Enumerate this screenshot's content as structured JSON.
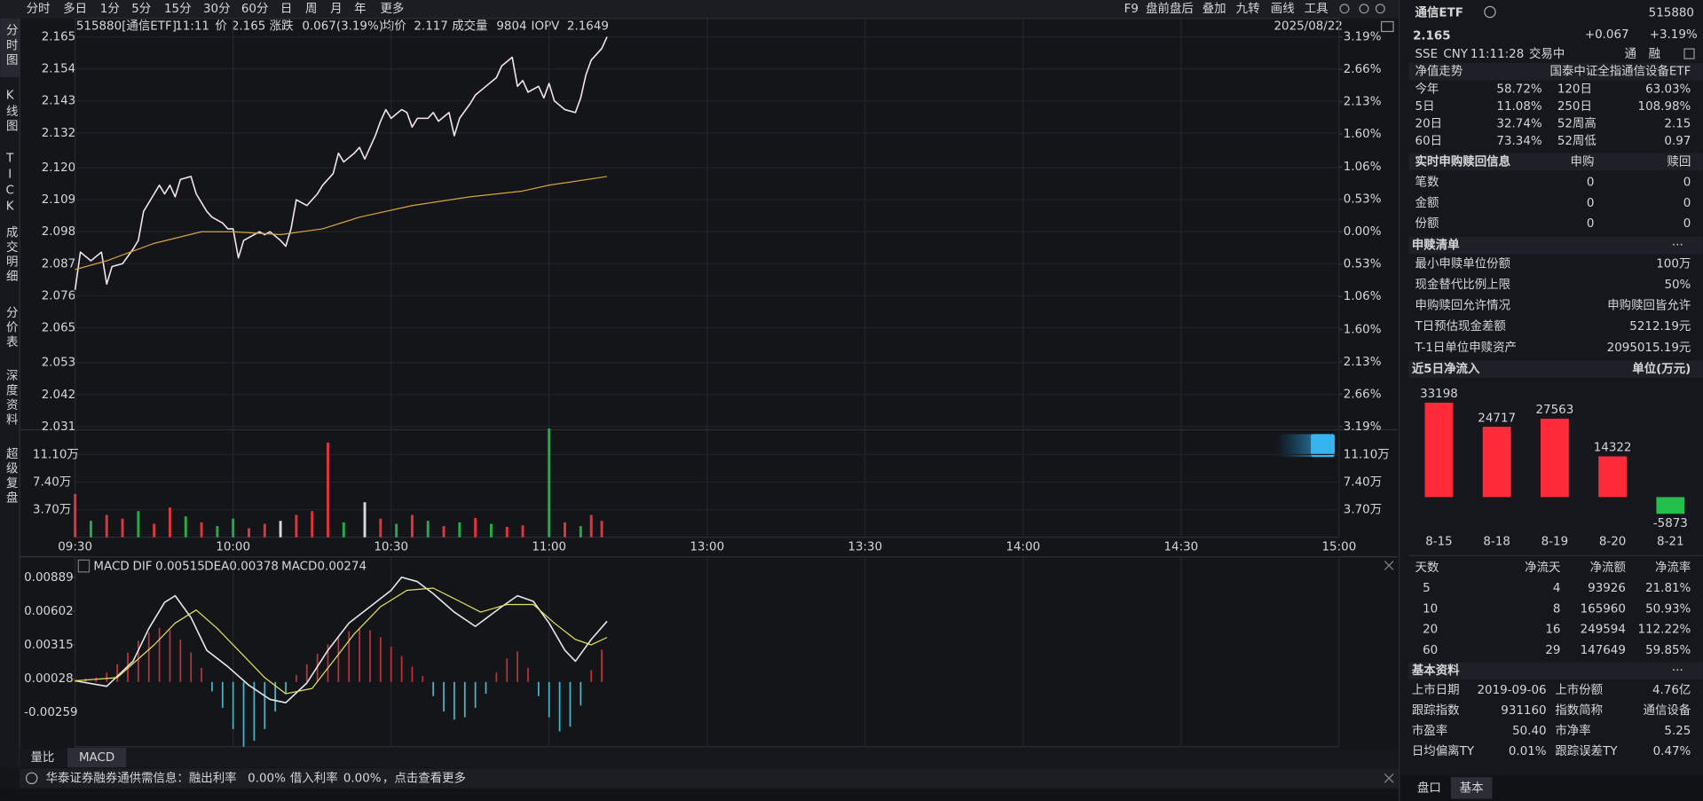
{
  "toolbar": {
    "tabs": [
      "分时",
      "多日",
      "1分",
      "5分",
      "15分",
      "30分",
      "60分",
      "日",
      "周",
      "月",
      "年",
      "更多"
    ],
    "tools": [
      "F9",
      "盘前盘后",
      "叠加",
      "九转",
      "画线",
      "工具"
    ]
  },
  "sidebar": [
    "分时图",
    "K线图",
    "TICK",
    "成交明细",
    "分价表",
    "深度资料",
    "超级复盘"
  ],
  "header": {
    "symbol": "515880[通信ETF]",
    "time": "11:11",
    "price": "2.165",
    "change_label": "涨跌",
    "change": "0.067(3.19%)",
    "avg": "2.117",
    "volume": "9804",
    "iopv_label": "IOPV",
    "iopv": "2.1649",
    "date": "2025/08/22"
  },
  "chart_data": [
    {
      "type": "line",
      "xlim": [
        0,
        240
      ],
      "xticks": [
        {
          "value": 0,
          "label": "09:30"
        },
        {
          "value": 30,
          "label": "10:00"
        },
        {
          "value": 60,
          "label": "10:30"
        },
        {
          "value": 90,
          "label": "11:00"
        },
        {
          "value": 120,
          "label": "13:00"
        },
        {
          "value": 150,
          "label": "13:30"
        },
        {
          "value": 180,
          "label": "14:00"
        },
        {
          "value": 210,
          "label": "14:30"
        },
        {
          "value": 240,
          "label": "15:00"
        }
      ],
      "ylim": [
        2.031,
        2.165
      ],
      "yticks": [
        2.165,
        2.154,
        2.143,
        2.132,
        {
          "value": 2.12,
          "label": "2.120"
        },
        2.109,
        2.098,
        2.087,
        2.076,
        2.065,
        2.053,
        2.042,
        2.031
      ],
      "y2lim": [
        -3.19,
        3.19
      ],
      "y2ticks": [
        {
          "value": 3.19,
          "label": "3.19%"
        },
        {
          "value": 2.66,
          "label": "2.66%"
        },
        {
          "value": 2.13,
          "label": "2.13%"
        },
        {
          "value": 1.6,
          "label": "1.60%"
        },
        {
          "value": 1.06,
          "label": "1.06%"
        },
        {
          "value": 0.53,
          "label": "0.53%"
        },
        {
          "value": 0,
          "label": "0.00%"
        },
        {
          "value": -0.53,
          "label": "0.53%"
        },
        {
          "value": -1.06,
          "label": "1.06%"
        },
        {
          "value": -1.6,
          "label": "1.60%"
        },
        {
          "value": -2.13,
          "label": "2.13%"
        },
        {
          "value": -2.66,
          "label": "2.66%"
        },
        {
          "value": -3.19,
          "label": "3.19%"
        }
      ],
      "grid": true,
      "series": [
        {
          "name": "价",
          "color": "#f3e6e8",
          "x": [
            0,
            1,
            3,
            5,
            6,
            7,
            9,
            11,
            12,
            13,
            15,
            16,
            17,
            18,
            19,
            20,
            22,
            23,
            25,
            26,
            28,
            29,
            30,
            31,
            32,
            34,
            35,
            36,
            37,
            39,
            40,
            41,
            42,
            44,
            46,
            47,
            49,
            50,
            51,
            53,
            54,
            55,
            57,
            58,
            59,
            60,
            62,
            63,
            64,
            65,
            67,
            68,
            69,
            71,
            72,
            73,
            75,
            76,
            78,
            80,
            81,
            83,
            84,
            85,
            86,
            88,
            89,
            90,
            91,
            93,
            95,
            96,
            97,
            98,
            100,
            101
          ],
          "values": [
            2.078,
            2.091,
            2.088,
            2.091,
            2.08,
            2.086,
            2.087,
            2.092,
            2.095,
            2.105,
            2.111,
            2.114,
            2.111,
            2.114,
            2.11,
            2.116,
            2.117,
            2.111,
            2.105,
            2.103,
            2.101,
            2.099,
            2.099,
            2.089,
            2.095,
            2.097,
            2.098,
            2.097,
            2.098,
            2.095,
            2.093,
            2.099,
            2.109,
            2.107,
            2.111,
            2.114,
            2.118,
            2.125,
            2.122,
            2.125,
            2.127,
            2.123,
            2.131,
            2.136,
            2.14,
            2.137,
            2.14,
            2.139,
            2.134,
            2.137,
            2.137,
            2.139,
            2.136,
            2.139,
            2.131,
            2.137,
            2.142,
            2.145,
            2.148,
            2.151,
            2.155,
            2.158,
            2.148,
            2.15,
            2.146,
            2.148,
            2.144,
            2.149,
            2.143,
            2.14,
            2.139,
            2.144,
            2.152,
            2.157,
            2.161,
            2.165
          ]
        },
        {
          "name": "均价",
          "color": "#d9a43a",
          "x": [
            0,
            6,
            15,
            24,
            30,
            39,
            47,
            54,
            64,
            75,
            85,
            90,
            101
          ],
          "values": [
            2.085,
            2.088,
            2.094,
            2.098,
            2.098,
            2.097,
            2.099,
            2.103,
            2.107,
            2.11,
            2.112,
            2.114,
            2.117
          ]
        }
      ]
    },
    {
      "type": "bar",
      "name": "成交量",
      "ylim": [
        0,
        150000
      ],
      "yticks": [
        {
          "value": 111000,
          "label": "11.10万"
        },
        {
          "value": 74000,
          "label": "7.40万"
        },
        {
          "value": 37000,
          "label": "3.70万"
        }
      ],
      "x": [
        0,
        3,
        6,
        9,
        12,
        15,
        18,
        21,
        24,
        27,
        30,
        33,
        36,
        39,
        42,
        45,
        48,
        51,
        55,
        58,
        61,
        64,
        67,
        70,
        73,
        76,
        79,
        82,
        85,
        90,
        93,
        96,
        98,
        100
      ],
      "values": [
        58000,
        22000,
        30000,
        25000,
        35000,
        18000,
        40000,
        28000,
        20000,
        15000,
        25000,
        12000,
        18000,
        22000,
        30000,
        35000,
        127000,
        20000,
        47000,
        25000,
        18000,
        30000,
        22000,
        15000,
        20000,
        26000,
        18000,
        14000,
        16000,
        146000,
        20000,
        15000,
        30000,
        22000
      ],
      "colors": [
        "#e0343e",
        "#1fae4a",
        "#e0343e",
        "#e0343e",
        "#1fae4a",
        "#e0343e",
        "#e0343e",
        "#1fae4a",
        "#e0343e",
        "#1fae4a",
        "#1fae4a",
        "#e0343e",
        "#e0343e",
        "#d8d8d8",
        "#e0343e",
        "#e0343e",
        "#e0343e",
        "#1fae4a",
        "#d8d8d8",
        "#e0343e",
        "#1fae4a",
        "#e0343e",
        "#1fae4a",
        "#e0343e",
        "#1fae4a",
        "#e0343e",
        "#1fae4a",
        "#e0343e",
        "#e0343e",
        "#1fae4a",
        "#e0343e",
        "#1fae4a",
        "#e0343e",
        "#e0343e"
      ]
    },
    {
      "type": "line",
      "title": "MACD",
      "ylim": [
        -0.0055,
        0.0098
      ],
      "yticks": [
        0.00889,
        0.00602,
        0.00315,
        0.00028,
        -0.00259
      ],
      "current": [
        0.00515,
        0.00378,
        0.00274
      ],
      "series": [
        {
          "name": "DIF",
          "color": "#e8e8e8",
          "x": [
            0,
            6,
            11,
            14,
            17,
            19,
            22,
            25,
            29,
            33,
            37,
            40,
            44,
            48,
            52,
            56,
            60,
            62,
            65,
            68,
            72,
            76,
            81,
            84,
            87,
            90,
            93,
            95,
            98,
            101
          ],
          "values": [
            0.0001,
            -0.00037,
            0.00176,
            0.00454,
            0.00676,
            0.00732,
            0.00547,
            0.00269,
            0.0013,
            -0.00028,
            -0.00148,
            -0.00176,
            -9e-05,
            0.00269,
            0.005,
            0.00639,
            0.00778,
            0.00889,
            0.00852,
            0.0075,
            0.00593,
            0.00472,
            0.00639,
            0.00732,
            0.00685,
            0.005,
            0.00269,
            0.00176,
            0.00361,
            0.00515
          ]
        },
        {
          "name": "DEA",
          "color": "#e3e35a",
          "x": [
            0,
            8,
            15,
            19,
            23,
            27,
            31,
            36,
            40,
            45,
            49,
            53,
            58,
            63,
            68,
            73,
            77,
            82,
            87,
            91,
            95,
            98,
            101
          ],
          "values": [
            0.0001,
            0.00037,
            0.00315,
            0.005,
            0.00611,
            0.00454,
            0.00269,
            0.00037,
            -0.001,
            -0.00055,
            0.00176,
            0.00408,
            0.00639,
            0.00778,
            0.00797,
            0.00685,
            0.00593,
            0.00658,
            0.00658,
            0.005,
            0.00361,
            0.00315,
            0.00378
          ]
        }
      ],
      "histogram": {
        "name": "MACD",
        "color": "#c0323c",
        "negative_color": "#48b8c8",
        "x": [
          0,
          2,
          4,
          6,
          8,
          10,
          12,
          14,
          16,
          18,
          20,
          22,
          24,
          26,
          28,
          30,
          32,
          34,
          36,
          38,
          40,
          42,
          44,
          46,
          48,
          50,
          52,
          54,
          56,
          58,
          60,
          62,
          64,
          66,
          68,
          70,
          72,
          74,
          76,
          78,
          80,
          82,
          84,
          86,
          88,
          90,
          92,
          94,
          96,
          98,
          100
        ],
        "values": [
          0.0002,
          0.0003,
          0.0004,
          0.0008,
          0.0015,
          0.0025,
          0.0035,
          0.0042,
          0.0046,
          0.0044,
          0.0036,
          0.0025,
          0.0012,
          -0.0008,
          -0.0022,
          -0.004,
          -0.0055,
          -0.005,
          -0.004,
          -0.0025,
          -0.001,
          0.0006,
          0.0015,
          0.0024,
          0.0032,
          0.0038,
          0.0043,
          0.0046,
          0.0044,
          0.0038,
          0.003,
          0.0022,
          0.0013,
          0.0005,
          -0.0012,
          -0.0025,
          -0.0032,
          -0.003,
          -0.0022,
          -0.001,
          0.0008,
          0.002,
          0.0026,
          0.0012,
          -0.0012,
          -0.003,
          -0.0042,
          -0.0038,
          -0.002,
          0.001,
          0.00274
        ]
      }
    },
    {
      "type": "bar",
      "title": "近5日净流入",
      "unit_label": "单位(万元)",
      "categories": [
        "8-15",
        "8-18",
        "8-19",
        "8-20",
        "8-21"
      ],
      "values": [
        33198,
        24717,
        27563,
        14322,
        -5873
      ],
      "colors": {
        "up": "#ff2b3b",
        "down": "#22c04b"
      }
    }
  ],
  "bottom_tabs": [
    "量比",
    "MACD"
  ],
  "status": {
    "text": "华泰证券融券通供需信息：融出利率",
    "rate1": "0.00%",
    "mid": "借入利率",
    "rate2": "0.00%",
    "tail": "，点击查看更多"
  },
  "quote": {
    "name": "通信ETF",
    "code": "515880",
    "price": "2.165",
    "change": "+0.067",
    "pct": "+3.19%",
    "exchange": "SSE",
    "currency": "CNY",
    "time": "11:11:28",
    "status": "交易中",
    "tags": [
      "通",
      "融"
    ]
  },
  "nav": {
    "title": "净值走势",
    "fund": "国泰中证全指通信设备ETF",
    "rows": [
      [
        "今年",
        "58.72%",
        "120日",
        "63.03%"
      ],
      [
        "5日",
        "11.08%",
        "250日",
        "108.98%"
      ],
      [
        "20日",
        "32.74%",
        "52周高",
        "2.15"
      ],
      [
        "60日",
        "73.34%",
        "52周低",
        "0.97"
      ]
    ]
  },
  "creation": {
    "title": "实时申购赎回信息",
    "cols": [
      "申购",
      "赎回"
    ],
    "rows": [
      [
        "笔数",
        "0",
        "0"
      ],
      [
        "金额",
        "0",
        "0"
      ],
      [
        "份额",
        "0",
        "0"
      ]
    ]
  },
  "redemption_list": {
    "title": "申赎清单",
    "more": "···",
    "rows": [
      [
        "最小申赎单位份额",
        "100万"
      ],
      [
        "现金替代比例上限",
        "50%"
      ],
      [
        "申购赎回允许情况",
        "申购赎回皆允许"
      ],
      [
        "T日预估现金差额",
        "5212.19元"
      ],
      [
        "T-1日单位申赎资产",
        "2095015.19元"
      ]
    ]
  },
  "flow_table": {
    "headers": [
      "天数",
      "净流天",
      "净流额",
      "净流率"
    ],
    "rows": [
      [
        "5",
        "4",
        "93926",
        "21.81%"
      ],
      [
        "10",
        "8",
        "165960",
        "50.93%"
      ],
      [
        "20",
        "16",
        "249594",
        "112.22%"
      ],
      [
        "60",
        "29",
        "147649",
        "59.85%"
      ]
    ]
  },
  "basic": {
    "title": "基本资料",
    "more": "···",
    "rows": [
      [
        "上市日期",
        "2019-09-06",
        "上市份额",
        "4.76亿"
      ],
      [
        "跟踪指数",
        "931160",
        "指数简称",
        "通信设备"
      ],
      [
        "市盈率",
        "50.40",
        "市净率",
        "5.25"
      ],
      [
        "日均偏离TY",
        "0.01%",
        "跟踪误差TY",
        "0.47%"
      ]
    ]
  },
  "panel_tabs": [
    "盘口",
    "基本"
  ]
}
